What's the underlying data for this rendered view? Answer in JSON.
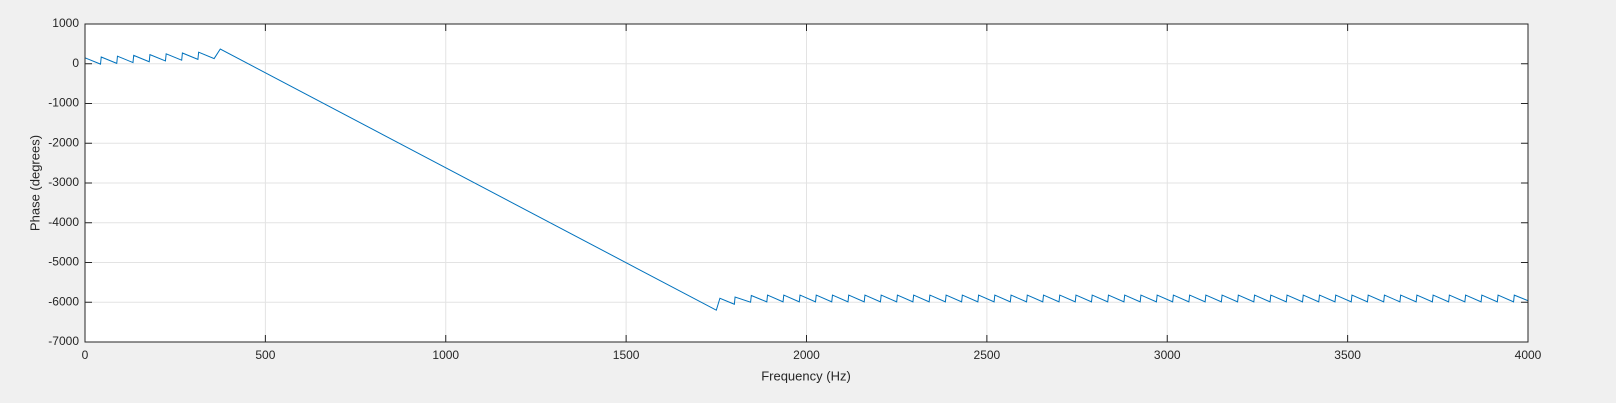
{
  "chart_data": {
    "type": "line",
    "xlabel": "Frequency (Hz)",
    "ylabel": "Phase (degrees)",
    "xlim": [
      0,
      4000
    ],
    "xticks": [
      0,
      500,
      1000,
      1500,
      2000,
      2500,
      3000,
      3500,
      4000
    ],
    "ylim": [
      -7000,
      1000
    ],
    "yticks": [
      -7000,
      -6000,
      -5000,
      -4000,
      -3000,
      -2000,
      -1000,
      0,
      1000
    ],
    "grid": true,
    "series": [
      {
        "color": "#0072bd",
        "x": [
          0,
          43,
          45,
          88,
          90,
          133,
          135,
          178,
          180,
          223,
          225,
          268,
          270,
          313,
          315,
          358,
          375,
          1750,
          1760,
          1800,
          1802,
          1845,
          1847,
          1890,
          1892,
          1935,
          1937,
          1980,
          1982,
          2025,
          2027,
          2070,
          2072,
          2115,
          2117,
          2160,
          2162,
          2205,
          2207,
          2250,
          2252,
          2295,
          2297,
          2340,
          2342,
          2385,
          2387,
          2430,
          2432,
          2475,
          2477,
          2520,
          2522,
          2565,
          2567,
          2610,
          2612,
          2655,
          2657,
          2700,
          2702,
          2745,
          2747,
          2790,
          2792,
          2835,
          2837,
          2880,
          2882,
          2925,
          2927,
          2970,
          2972,
          3015,
          3017,
          3060,
          3062,
          3105,
          3107,
          3150,
          3152,
          3195,
          3197,
          3240,
          3242,
          3285,
          3287,
          3330,
          3332,
          3375,
          3377,
          3420,
          3422,
          3465,
          3467,
          3510,
          3512,
          3555,
          3557,
          3600,
          3602,
          3645,
          3647,
          3690,
          3692,
          3735,
          3737,
          3780,
          3782,
          3825,
          3827,
          3870,
          3872,
          3915,
          3917,
          3960,
          3962,
          4000
        ],
        "values": [
          150,
          -10,
          170,
          10,
          190,
          30,
          210,
          50,
          230,
          70,
          250,
          90,
          270,
          110,
          290,
          130,
          370,
          -6200,
          -5900,
          -6050,
          -5870,
          -6000,
          -5830,
          -5990,
          -5820,
          -5990,
          -5820,
          -5990,
          -5820,
          -5990,
          -5820,
          -5990,
          -5820,
          -5990,
          -5820,
          -5990,
          -5820,
          -5990,
          -5820,
          -5990,
          -5820,
          -5990,
          -5820,
          -5990,
          -5820,
          -5990,
          -5820,
          -5990,
          -5820,
          -5990,
          -5820,
          -5990,
          -5820,
          -5990,
          -5820,
          -5990,
          -5820,
          -5990,
          -5820,
          -5990,
          -5820,
          -5990,
          -5820,
          -5990,
          -5820,
          -5990,
          -5820,
          -5990,
          -5820,
          -5990,
          -5820,
          -5990,
          -5820,
          -5990,
          -5820,
          -5990,
          -5820,
          -5990,
          -5820,
          -5990,
          -5820,
          -5990,
          -5820,
          -5990,
          -5820,
          -5990,
          -5820,
          -5990,
          -5820,
          -5990,
          -5820,
          -5990,
          -5820,
          -5990,
          -5820,
          -5990,
          -5820,
          -5990,
          -5820,
          -5990,
          -5820,
          -5990,
          -5820,
          -5990,
          -5820,
          -5990,
          -5820,
          -5990,
          -5820,
          -5990,
          -5820,
          -5990,
          -5820,
          -5990,
          -5820,
          -5990,
          -5820,
          -5960
        ]
      }
    ]
  }
}
